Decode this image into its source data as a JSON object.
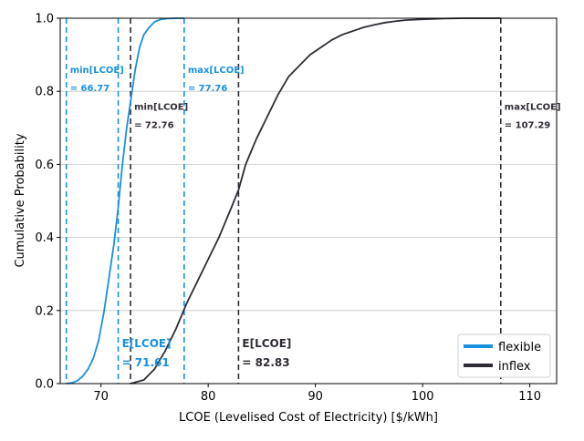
{
  "chart_data": {
    "type": "line",
    "title": "",
    "xlabel": "LCOE (Levelised Cost of Electricity) [$/kWh]",
    "ylabel": "Cumulative Probability",
    "xlim": [
      66.2,
      112.5
    ],
    "ylim": [
      0,
      1
    ],
    "xticks": [
      "70",
      "80",
      "90",
      "100",
      "110"
    ],
    "xtick_values": [
      70,
      80,
      90,
      100,
      110
    ],
    "yticks": [
      "0.0",
      "0.2",
      "0.4",
      "0.6",
      "0.8",
      "1.0"
    ],
    "ytick_values": [
      0,
      0.2,
      0.4,
      0.6,
      0.8,
      1.0
    ],
    "grid": "horizontal",
    "legend": {
      "placement": "lower-right",
      "entries": [
        "flexible",
        "inflex"
      ]
    },
    "colors": {
      "flexible": "#1a8fdf",
      "inflex": "#302a35",
      "grid": "#c8c8c8"
    },
    "series": [
      {
        "name": "flexible",
        "x": [
          66.77,
          67.3,
          67.8,
          68.3,
          68.8,
          69.3,
          69.8,
          70.3,
          70.8,
          71.2,
          71.6,
          72.0,
          72.4,
          72.8,
          73.2,
          73.6,
          74.0,
          74.5,
          75.0,
          75.6,
          76.2,
          77.0,
          77.76
        ],
        "y": [
          0.0,
          0.002,
          0.008,
          0.02,
          0.04,
          0.07,
          0.12,
          0.2,
          0.3,
          0.38,
          0.48,
          0.6,
          0.7,
          0.78,
          0.86,
          0.92,
          0.955,
          0.975,
          0.99,
          0.997,
          0.999,
          1.0,
          1.0
        ]
      },
      {
        "name": "inflex",
        "x": [
          72.76,
          74.0,
          75.0,
          76.0,
          77.0,
          78.0,
          79.0,
          80.0,
          81.0,
          82.0,
          82.83,
          83.5,
          84.5,
          85.5,
          86.5,
          87.5,
          88.5,
          89.5,
          90.5,
          91.5,
          92.5,
          93.5,
          94.5,
          95.5,
          96.5,
          97.5,
          98.5,
          100.0,
          102.0,
          104.0,
          106.0,
          107.29
        ],
        "y": [
          0.0,
          0.01,
          0.04,
          0.09,
          0.15,
          0.22,
          0.28,
          0.34,
          0.4,
          0.47,
          0.53,
          0.6,
          0.67,
          0.73,
          0.79,
          0.84,
          0.87,
          0.9,
          0.92,
          0.94,
          0.955,
          0.965,
          0.975,
          0.982,
          0.988,
          0.992,
          0.995,
          0.997,
          0.999,
          1.0,
          1.0,
          1.0
        ]
      }
    ],
    "vlines": [
      {
        "series": "flexible",
        "x": 66.77,
        "label1": "min[LCOE]",
        "label2": "= 66.77",
        "label_y": 0.85
      },
      {
        "series": "flexible",
        "x": 71.61,
        "label1": "E[LCOE]",
        "label2": "= 71.61",
        "label_y": 0.1
      },
      {
        "series": "flexible",
        "x": 77.76,
        "label1": "max[LCOE]",
        "label2": "= 77.76",
        "label_y": 0.85
      },
      {
        "series": "inflex",
        "x": 72.76,
        "label1": "min[LCOE]",
        "label2": "= 72.76",
        "label_y": 0.75
      },
      {
        "series": "inflex",
        "x": 82.83,
        "label1": "E[LCOE]",
        "label2": "= 82.83",
        "label_y": 0.1
      },
      {
        "series": "inflex",
        "x": 107.29,
        "label1": "max[LCOE]",
        "label2": "= 107.29",
        "label_y": 0.75
      }
    ]
  }
}
